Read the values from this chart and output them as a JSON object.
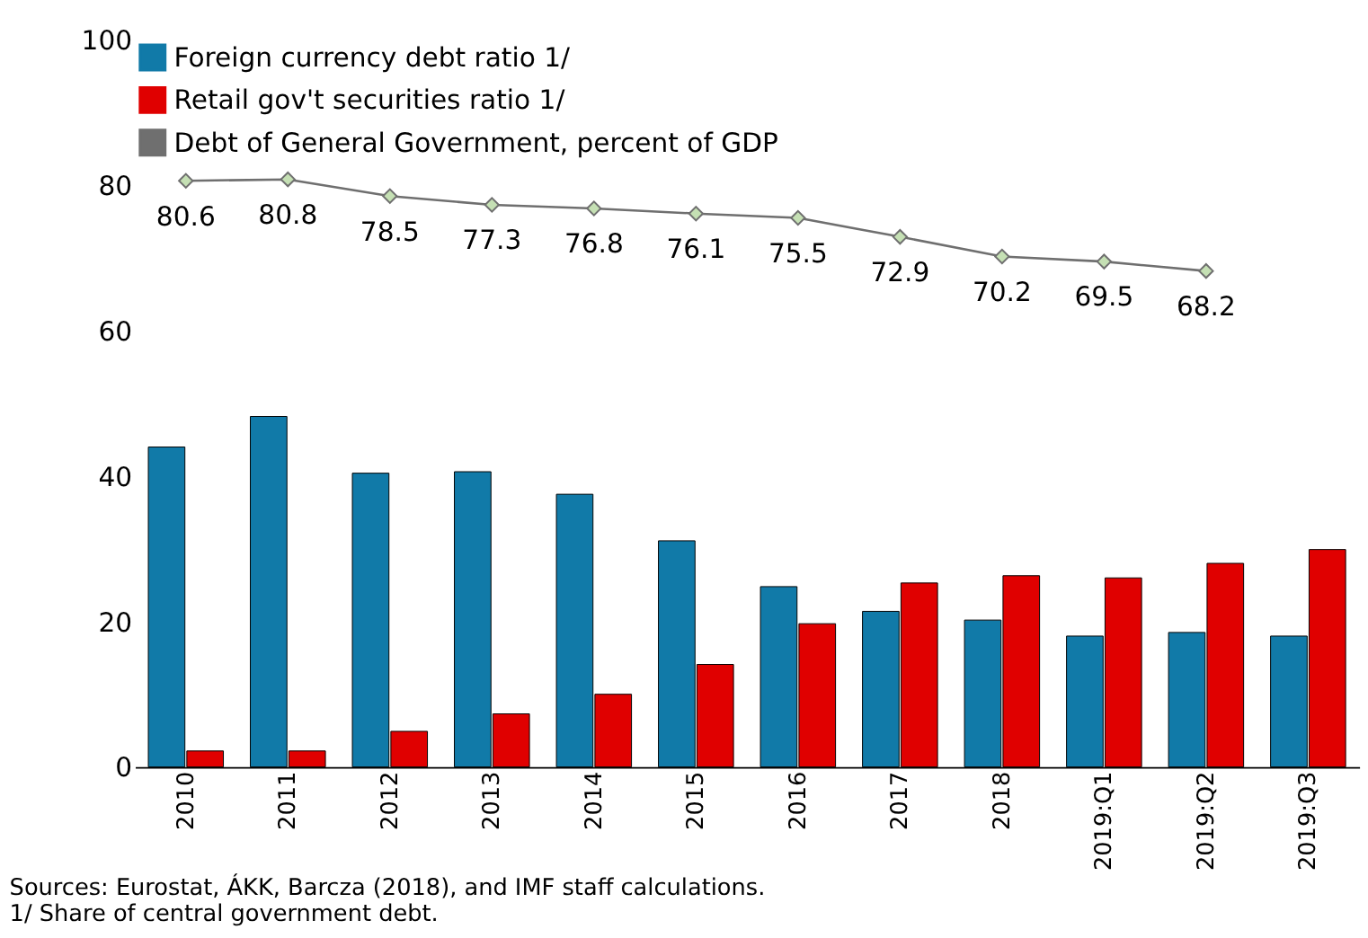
{
  "chart_data": {
    "type": "bar",
    "categories": [
      "2010",
      "2011",
      "2012",
      "2013",
      "2014",
      "2015",
      "2016",
      "2017",
      "2018",
      "2019:Q1",
      "2019:Q2",
      "2019:Q3"
    ],
    "series": [
      {
        "name": "Foreign currency debt ratio 1/",
        "color": "#117aa8",
        "values": [
          44.0,
          48.2,
          40.4,
          40.6,
          37.5,
          31.1,
          24.8,
          21.4,
          20.2,
          18.0,
          18.5,
          18.0
        ]
      },
      {
        "name": "Retail gov't securities ratio 1/",
        "color": "#e00000",
        "values": [
          2.2,
          2.2,
          4.9,
          7.3,
          10.0,
          14.1,
          19.7,
          25.3,
          26.3,
          26.0,
          28.0,
          29.9
        ]
      },
      {
        "name": "Debt of General Government, percent of GDP",
        "type": "line",
        "marker": "diamond",
        "color": "#6f6f6f",
        "values": [
          80.6,
          80.8,
          78.5,
          77.3,
          76.8,
          76.1,
          75.5,
          72.9,
          70.2,
          69.5,
          68.2,
          null
        ],
        "value_labels": [
          "80.6",
          "80.8",
          "78.5",
          "77.3",
          "76.8",
          "76.1",
          "75.5",
          "72.9",
          "70.2",
          "69.5",
          "68.2",
          null
        ]
      }
    ],
    "ylim": [
      0,
      100
    ],
    "yticks": [
      0,
      20,
      40,
      60,
      80,
      100
    ],
    "grid": false,
    "legend": "top left",
    "annotations": [
      "Sources: Eurostat, ÁKK, Barcza (2018), and IMF staff calculations.",
      "1/ Share of central government debt."
    ]
  }
}
